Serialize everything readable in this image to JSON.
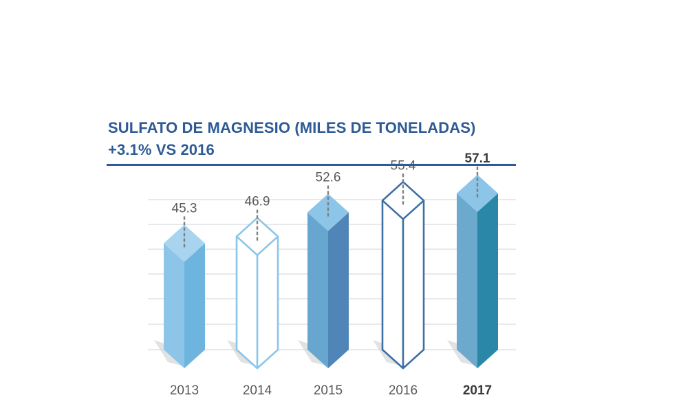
{
  "header": {
    "title": "SULFATO DE MAGNESIO (MILES DE TONELADAS)",
    "subtitle": "+3.1% VS 2016"
  },
  "colors": {
    "title": "#2e5b95",
    "rule": "#2e5b95",
    "gridline": "#cfd3d8",
    "shadow": "#c9cacc",
    "leader": "#7f7f7f",
    "bars": [
      {
        "style": "filled",
        "front": "#8cc5e8",
        "side": "#6db4de",
        "top": "#a9d4ef"
      },
      {
        "style": "outline",
        "stroke": "#8cc5e8"
      },
      {
        "style": "filled",
        "front": "#67a7cf",
        "side": "#4f86b7",
        "top": "#8cc5e8"
      },
      {
        "style": "outline",
        "stroke": "#3d6fa5"
      },
      {
        "style": "filled",
        "front": "#6ba9cd",
        "side": "#2b87a8",
        "top": "#8cc5e8"
      }
    ]
  },
  "chart_data": {
    "type": "bar",
    "style": "3d-prism",
    "categories": [
      "2013",
      "2014",
      "2015",
      "2016",
      "2017"
    ],
    "values": [
      45.3,
      46.9,
      52.6,
      55.4,
      57.1
    ],
    "value_labels": [
      "45.3",
      "46.9",
      "52.6",
      "55.4",
      "57.1"
    ],
    "highlight_category": "2017",
    "title": "SULFATO DE MAGNESIO (MILES DE TONELADAS)",
    "subtitle": "+3.1% VS 2016",
    "xlabel": "",
    "ylabel": "",
    "grid": true,
    "legend": "none"
  }
}
